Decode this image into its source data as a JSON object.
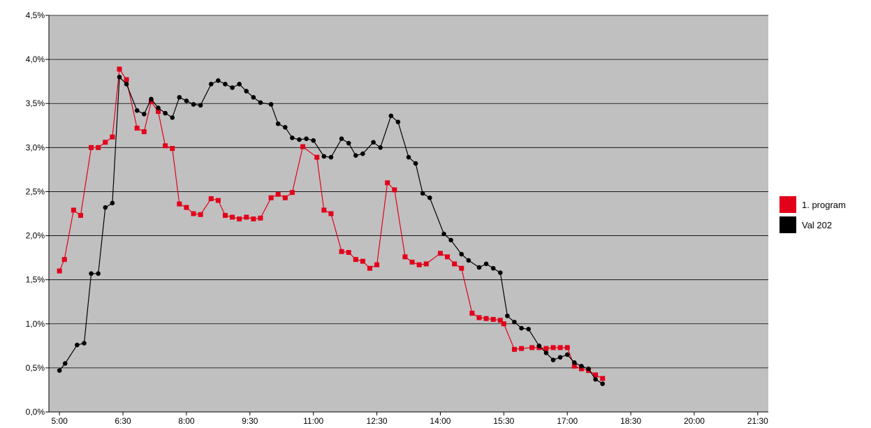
{
  "chart_data": {
    "type": "line",
    "title": "",
    "xlabel": "",
    "ylabel": "",
    "ylim": [
      0,
      4.5
    ],
    "y_ticks": [
      "0,0%",
      "0,5%",
      "1,0%",
      "1,5%",
      "2,0%",
      "2,5%",
      "3,0%",
      "3,5%",
      "4,0%",
      "4,5%"
    ],
    "x_ticks": [
      "5:00",
      "6:30",
      "8:00",
      "9:30",
      "11:00",
      "12:30",
      "14:00",
      "15:30",
      "17:00",
      "18:30",
      "20:00",
      "21:30"
    ],
    "x_tick_minutes": [
      300,
      390,
      480,
      570,
      660,
      750,
      840,
      930,
      1020,
      1110,
      1200,
      1290
    ],
    "xlim_minutes": [
      285,
      1305
    ],
    "grid": "horizontal",
    "plot_background": "#c0c0c0",
    "legend_position": "right",
    "series": [
      {
        "name": "1. program",
        "color": "#e2001a",
        "marker": "square",
        "points": [
          [
            300,
            1.6
          ],
          [
            307,
            1.73
          ],
          [
            320,
            2.29
          ],
          [
            330,
            2.23
          ],
          [
            345,
            3.0
          ],
          [
            355,
            3.0
          ],
          [
            365,
            3.06
          ],
          [
            375,
            3.12
          ],
          [
            385,
            3.89
          ],
          [
            395,
            3.77
          ],
          [
            410,
            3.22
          ],
          [
            420,
            3.18
          ],
          [
            430,
            3.52
          ],
          [
            440,
            3.41
          ],
          [
            450,
            3.02
          ],
          [
            460,
            2.99
          ],
          [
            470,
            2.36
          ],
          [
            480,
            2.32
          ],
          [
            490,
            2.25
          ],
          [
            500,
            2.24
          ],
          [
            515,
            2.42
          ],
          [
            525,
            2.4
          ],
          [
            535,
            2.23
          ],
          [
            545,
            2.21
          ],
          [
            555,
            2.19
          ],
          [
            565,
            2.21
          ],
          [
            575,
            2.19
          ],
          [
            585,
            2.2
          ],
          [
            600,
            2.43
          ],
          [
            610,
            2.47
          ],
          [
            620,
            2.43
          ],
          [
            630,
            2.49
          ],
          [
            645,
            3.01
          ],
          [
            665,
            2.89
          ],
          [
            675,
            2.29
          ],
          [
            685,
            2.25
          ],
          [
            700,
            1.82
          ],
          [
            710,
            1.81
          ],
          [
            720,
            1.73
          ],
          [
            730,
            1.71
          ],
          [
            740,
            1.63
          ],
          [
            750,
            1.67
          ],
          [
            765,
            2.6
          ],
          [
            775,
            2.52
          ],
          [
            790,
            1.76
          ],
          [
            800,
            1.7
          ],
          [
            810,
            1.67
          ],
          [
            820,
            1.68
          ],
          [
            840,
            1.8
          ],
          [
            850,
            1.76
          ],
          [
            860,
            1.68
          ],
          [
            870,
            1.63
          ],
          [
            885,
            1.12
          ],
          [
            895,
            1.07
          ],
          [
            905,
            1.06
          ],
          [
            915,
            1.05
          ],
          [
            925,
            1.04
          ],
          [
            930,
            1.0
          ],
          [
            945,
            0.71
          ],
          [
            955,
            0.72
          ],
          [
            970,
            0.73
          ],
          [
            980,
            0.73
          ],
          [
            990,
            0.72
          ],
          [
            1000,
            0.73
          ],
          [
            1010,
            0.73
          ],
          [
            1020,
            0.73
          ],
          [
            1030,
            0.52
          ],
          [
            1040,
            0.49
          ],
          [
            1050,
            0.47
          ],
          [
            1060,
            0.42
          ],
          [
            1070,
            0.38
          ]
        ]
      },
      {
        "name": "Val 202",
        "color": "#000000",
        "marker": "circle",
        "points": [
          [
            300,
            0.47
          ],
          [
            308,
            0.55
          ],
          [
            325,
            0.76
          ],
          [
            335,
            0.78
          ],
          [
            345,
            1.57
          ],
          [
            355,
            1.57
          ],
          [
            365,
            2.32
          ],
          [
            375,
            2.37
          ],
          [
            385,
            3.8
          ],
          [
            395,
            3.72
          ],
          [
            410,
            3.42
          ],
          [
            420,
            3.38
          ],
          [
            430,
            3.55
          ],
          [
            440,
            3.45
          ],
          [
            450,
            3.39
          ],
          [
            460,
            3.34
          ],
          [
            470,
            3.57
          ],
          [
            480,
            3.53
          ],
          [
            490,
            3.49
          ],
          [
            500,
            3.48
          ],
          [
            515,
            3.72
          ],
          [
            525,
            3.76
          ],
          [
            535,
            3.72
          ],
          [
            545,
            3.68
          ],
          [
            555,
            3.72
          ],
          [
            565,
            3.64
          ],
          [
            575,
            3.57
          ],
          [
            585,
            3.51
          ],
          [
            600,
            3.49
          ],
          [
            610,
            3.27
          ],
          [
            620,
            3.23
          ],
          [
            630,
            3.11
          ],
          [
            640,
            3.09
          ],
          [
            650,
            3.1
          ],
          [
            660,
            3.08
          ],
          [
            675,
            2.9
          ],
          [
            685,
            2.89
          ],
          [
            700,
            3.1
          ],
          [
            710,
            3.05
          ],
          [
            720,
            2.91
          ],
          [
            730,
            2.93
          ],
          [
            745,
            3.06
          ],
          [
            755,
            3.0
          ],
          [
            770,
            3.36
          ],
          [
            780,
            3.29
          ],
          [
            795,
            2.89
          ],
          [
            805,
            2.82
          ],
          [
            815,
            2.48
          ],
          [
            825,
            2.43
          ],
          [
            845,
            2.02
          ],
          [
            855,
            1.95
          ],
          [
            870,
            1.79
          ],
          [
            880,
            1.72
          ],
          [
            895,
            1.64
          ],
          [
            905,
            1.68
          ],
          [
            915,
            1.63
          ],
          [
            925,
            1.58
          ],
          [
            935,
            1.09
          ],
          [
            945,
            1.02
          ],
          [
            955,
            0.95
          ],
          [
            965,
            0.94
          ],
          [
            980,
            0.75
          ],
          [
            990,
            0.67
          ],
          [
            1000,
            0.59
          ],
          [
            1010,
            0.62
          ],
          [
            1020,
            0.65
          ],
          [
            1030,
            0.56
          ],
          [
            1040,
            0.52
          ],
          [
            1050,
            0.49
          ],
          [
            1060,
            0.37
          ],
          [
            1070,
            0.32
          ]
        ]
      }
    ]
  }
}
